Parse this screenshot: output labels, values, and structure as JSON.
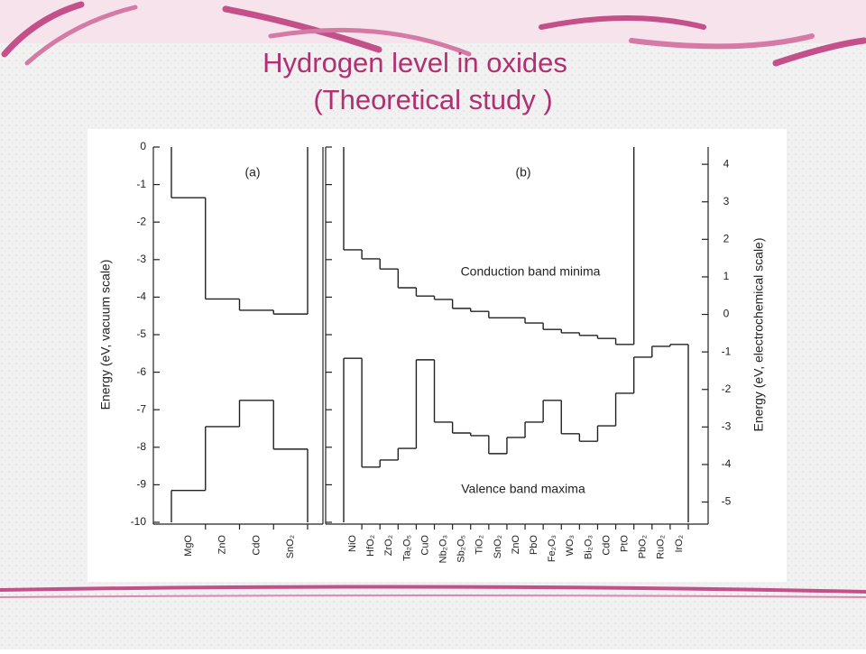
{
  "title_lines": [
    "Hydrogen level in oxides",
    "(Theoretical study )"
  ],
  "chart_data": [
    {
      "type": "step",
      "label": "(a)",
      "ylabel": "Energy (eV, vacuum scale)",
      "categories": [
        "MgO",
        "ZnO",
        "CdO",
        "SnO₂"
      ],
      "series": [
        {
          "color": "#222222",
          "values": [
            -1.35,
            -4.05,
            -4.35,
            -4.45
          ]
        },
        {
          "color": "#222222",
          "values": [
            -9.15,
            -7.45,
            -6.75,
            -8.05
          ]
        }
      ],
      "ylim": [
        -10,
        0
      ],
      "yticks": [
        0,
        -1,
        -2,
        -3,
        -4,
        -5,
        -6,
        -7,
        -8,
        -9,
        -10
      ]
    },
    {
      "type": "step",
      "label": "(b)",
      "y2label": "Energy (eV, electrochemical scale)",
      "annotations": [
        "Conduction band minima",
        "Valence band maxima"
      ],
      "categories": [
        "NiO",
        "HfO₂",
        "ZrO₂",
        "Ta₂O₅",
        "CuO",
        "Nb₂O₃",
        "Sb₂O₅",
        "TiO₂",
        "SnO₂",
        "ZnO",
        "PbO",
        "Fe₂O₃",
        "WO₃",
        "Bi₂O₃",
        "CdO",
        "PtO",
        "PbO₂",
        "RuO₂",
        "IrO₂"
      ],
      "series": [
        {
          "color": "#222222",
          "values": [
            -2.74,
            -2.98,
            -3.25,
            -3.75,
            -3.97,
            -4.06,
            -4.3,
            -4.38,
            -4.55,
            -4.55,
            -4.69,
            -4.86,
            -4.95,
            -5.02,
            -5.1,
            -5.26,
            null,
            null,
            null
          ]
        },
        {
          "color": "#222222",
          "values": [
            -5.63,
            -8.53,
            -8.34,
            -8.03,
            -5.67,
            -7.33,
            -7.62,
            -7.69,
            -8.17,
            -7.74,
            -7.33,
            -6.75,
            -7.64,
            -7.84,
            -7.43,
            -6.56,
            -5.6,
            -5.31,
            -5.26
          ]
        }
      ],
      "ylim": [
        -10,
        0
      ],
      "yticks": [
        0,
        -1,
        -2,
        -3,
        -4,
        -5,
        -6,
        -7,
        -8,
        -9,
        -10
      ],
      "y2lim": [
        -5.54,
        4.46
      ],
      "y2ticks": [
        4,
        3,
        2,
        1,
        0,
        -1,
        -2,
        -3,
        -4,
        -5
      ]
    }
  ]
}
